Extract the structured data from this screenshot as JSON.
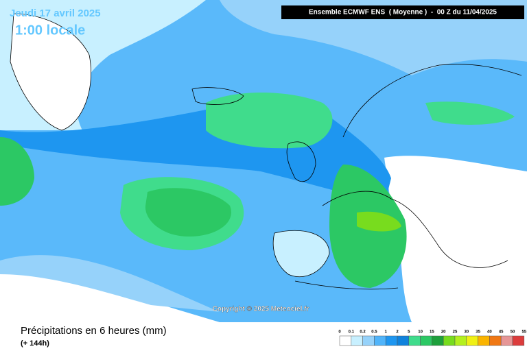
{
  "overlay": {
    "date": "Jeudi 17 avril 2025",
    "time": "1:00 locale",
    "header": "Ensemble ECMWF ENS  ( Moyenne )  -  00 Z du 11/04/2025",
    "copyright": "Copyright © 2025 Meteociel.fr"
  },
  "footer": {
    "title": "Précipitations en 6 heures (mm)",
    "subtitle": "(+ 144h)"
  },
  "legend": {
    "labels": [
      0,
      0.1,
      0.2,
      0.5,
      1,
      2,
      5,
      10,
      15,
      20,
      25,
      30,
      35,
      40,
      45,
      50,
      55
    ],
    "colors": [
      "#ffffff",
      "#c8f0ff",
      "#96d2fa",
      "#50b4fa",
      "#1e96f0",
      "#0f82dc",
      "#40dc8c",
      "#2cc864",
      "#1ea03c",
      "#78dc1e",
      "#b4f01e",
      "#f0f014",
      "#fab400",
      "#f07814",
      "#e69696",
      "#dc3c3c",
      "#b40000"
    ]
  }
}
